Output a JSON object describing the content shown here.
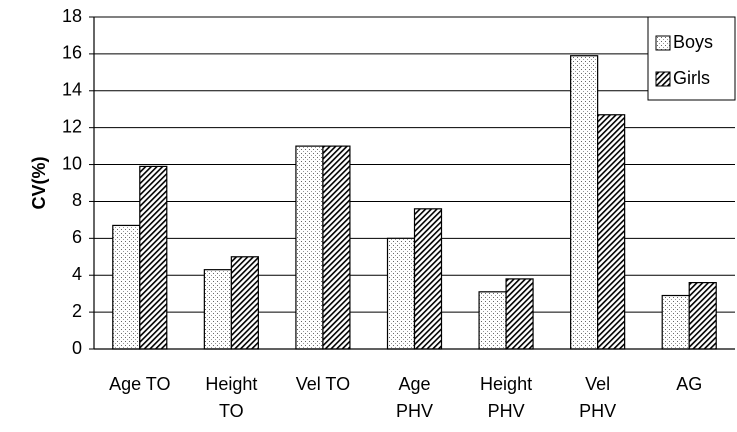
{
  "chart_data": {
    "type": "bar",
    "y_label": "CV(%)",
    "categories": [
      [
        "Age TO"
      ],
      [
        "Height",
        "TO"
      ],
      [
        "Vel TO"
      ],
      [
        "Age",
        "PHV"
      ],
      [
        "Height",
        "PHV"
      ],
      [
        "Vel",
        "PHV"
      ],
      [
        "AG"
      ]
    ],
    "series": [
      {
        "name": "Boys",
        "color": "#ffffff",
        "values": [
          6.7,
          4.3,
          11.0,
          6.0,
          3.1,
          15.9,
          2.9
        ]
      },
      {
        "name": "Girls",
        "color": "#ffffff",
        "values": [
          9.9,
          5.0,
          11.0,
          7.6,
          3.8,
          12.7,
          3.6
        ]
      }
    ],
    "ylim": [
      0,
      18
    ],
    "yticks": [
      0,
      2,
      4,
      6,
      8,
      10,
      12,
      14,
      16,
      18
    ],
    "grid": true,
    "legend": "upper right"
  }
}
